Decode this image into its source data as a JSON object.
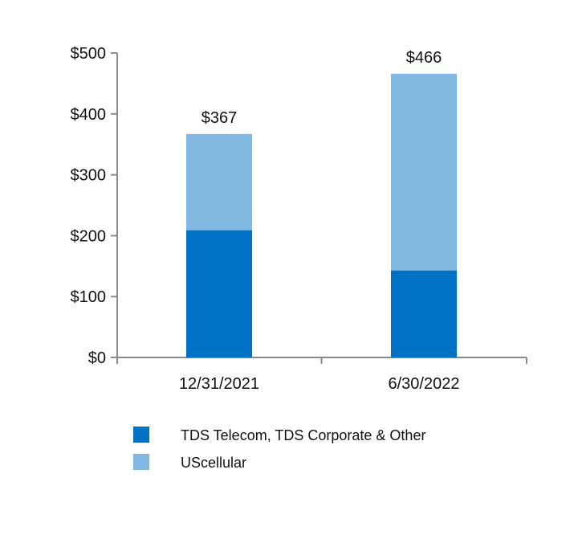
{
  "chart_data": {
    "type": "bar",
    "stacked": true,
    "categories": [
      "12/31/2021",
      "6/30/2022"
    ],
    "series": [
      {
        "name": "TDS Telecom, TDS Corporate & Other",
        "values": [
          209,
          143
        ],
        "color": "#0072C6"
      },
      {
        "name": "UScellular",
        "values": [
          158,
          323
        ],
        "color": "#80B8E2"
      }
    ],
    "totals": [
      367,
      466
    ],
    "total_labels": [
      "$367",
      "$466"
    ],
    "ylim": [
      0,
      500
    ],
    "yticks": [
      0,
      100,
      200,
      300,
      400,
      500
    ],
    "ytick_labels": [
      "$0",
      "$100",
      "$200",
      "$300",
      "$400",
      "$500"
    ],
    "grid": false,
    "legend_position": "bottom-left"
  }
}
